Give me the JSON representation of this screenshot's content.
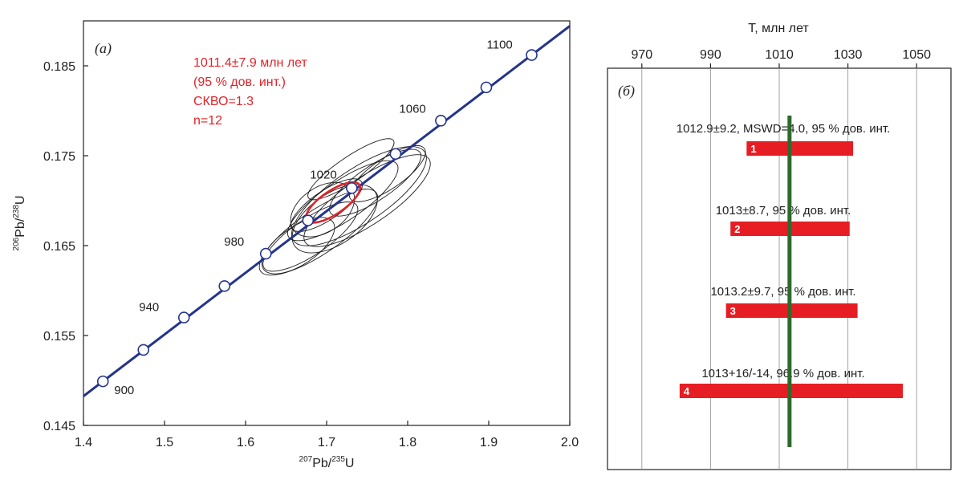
{
  "colors": {
    "concordia": "#24348c",
    "ellipse": "#1e1e1e",
    "mean_ellipse": "#e0242a",
    "bar": "#e61e24",
    "mean_line": "#2c6a2c",
    "annotation": "#e0242a"
  },
  "chart_data": [
    {
      "type": "scatter",
      "panel_label": "(а)",
      "xlabel": {
        "pre": "207",
        "mid": "Pb/",
        "sup2": "235",
        "post": "U"
      },
      "ylabel": {
        "pre": "206",
        "mid": "Pb/",
        "sup2": "238",
        "post": "U"
      },
      "xlim": [
        1.4,
        2.0
      ],
      "ylim": [
        0.145,
        0.19
      ],
      "xticks": [
        "1.4",
        "1.5",
        "1.6",
        "1.7",
        "1.8",
        "1.9",
        "2.0"
      ],
      "yticks": [
        "0.145",
        "0.155",
        "0.165",
        "0.175",
        "0.185"
      ],
      "grid": false,
      "concordia": {
        "points": [
          {
            "age": 900,
            "x": 1.424,
            "y": 0.1499,
            "label": "900"
          },
          {
            "age": 920,
            "x": 1.474,
            "y": 0.1534,
            "label": ""
          },
          {
            "age": 940,
            "x": 1.524,
            "y": 0.157,
            "label": "940"
          },
          {
            "age": 960,
            "x": 1.574,
            "y": 0.1605,
            "label": ""
          },
          {
            "age": 980,
            "x": 1.625,
            "y": 0.1641,
            "label": "980"
          },
          {
            "age": 1000,
            "x": 1.677,
            "y": 0.1678,
            "label": ""
          },
          {
            "age": 1020,
            "x": 1.731,
            "y": 0.1714,
            "label": "1020"
          },
          {
            "age": 1040,
            "x": 1.785,
            "y": 0.1752,
            "label": ""
          },
          {
            "age": 1060,
            "x": 1.841,
            "y": 0.1789,
            "label": "1060"
          },
          {
            "age": 1080,
            "x": 1.897,
            "y": 0.1826,
            "label": ""
          },
          {
            "age": 1100,
            "x": 1.953,
            "y": 0.1862,
            "label": "1100"
          }
        ]
      },
      "ellipses": [
        {
          "cx": 1.7,
          "cy": 0.1695,
          "rx": 0.045,
          "ry": 0.0016,
          "angle": 34
        },
        {
          "cx": 1.72,
          "cy": 0.17,
          "rx": 0.07,
          "ry": 0.0022,
          "angle": 34
        },
        {
          "cx": 1.69,
          "cy": 0.1665,
          "rx": 0.075,
          "ry": 0.0024,
          "angle": 34
        },
        {
          "cx": 1.68,
          "cy": 0.166,
          "rx": 0.06,
          "ry": 0.002,
          "angle": 34
        },
        {
          "cx": 1.71,
          "cy": 0.168,
          "rx": 0.052,
          "ry": 0.0028,
          "angle": 34
        },
        {
          "cx": 1.74,
          "cy": 0.1705,
          "rx": 0.085,
          "ry": 0.003,
          "angle": 34
        },
        {
          "cx": 1.76,
          "cy": 0.172,
          "rx": 0.058,
          "ry": 0.0019,
          "angle": 34
        },
        {
          "cx": 1.695,
          "cy": 0.169,
          "rx": 0.038,
          "ry": 0.0025,
          "angle": 34
        },
        {
          "cx": 1.775,
          "cy": 0.173,
          "rx": 0.048,
          "ry": 0.0017,
          "angle": 34
        },
        {
          "cx": 1.73,
          "cy": 0.1735,
          "rx": 0.055,
          "ry": 0.0014,
          "angle": 34
        },
        {
          "cx": 1.665,
          "cy": 0.165,
          "rx": 0.045,
          "ry": 0.0021,
          "angle": 34
        },
        {
          "cx": 1.75,
          "cy": 0.17,
          "rx": 0.08,
          "ry": 0.0026,
          "angle": 34
        }
      ],
      "mean_ellipse": {
        "cx": 1.708,
        "cy": 0.1698,
        "rx": 0.034,
        "ry": 0.0013,
        "angle": 34
      },
      "annotation": [
        "1011.4±7.9 млн лет",
        "(95 % дов. инт.)",
        "СКВО=1.3",
        "n=12"
      ]
    },
    {
      "type": "bar",
      "panel_label": "(б)",
      "xlabel": "Т, млн лет",
      "xlim": [
        960,
        1060
      ],
      "xticks": [
        970,
        990,
        1010,
        1030,
        1050
      ],
      "xtick_labels": [
        "970",
        "990",
        "1010",
        "1030",
        "1050"
      ],
      "grid": true,
      "mean_line": 1013,
      "bars": [
        {
          "label": "1",
          "value": 1012.9,
          "low": 1000.5,
          "high": 1031.5,
          "caption": "1012.9±9.2, MSWD=4.0, 95 % дов. инт."
        },
        {
          "label": "2",
          "value": 1013.0,
          "low": 995.8,
          "high": 1030.5,
          "caption": "1013±8.7, 95 % дов. инт."
        },
        {
          "label": "3",
          "value": 1013.2,
          "low": 994.5,
          "high": 1032.8,
          "caption": "1013.2±9.7, 95 % дов. инт."
        },
        {
          "label": "4",
          "value": 1013.0,
          "low": 981.0,
          "high": 1046.0,
          "caption": "1013+16/-14, 96.9 % дов. инт."
        }
      ]
    }
  ]
}
